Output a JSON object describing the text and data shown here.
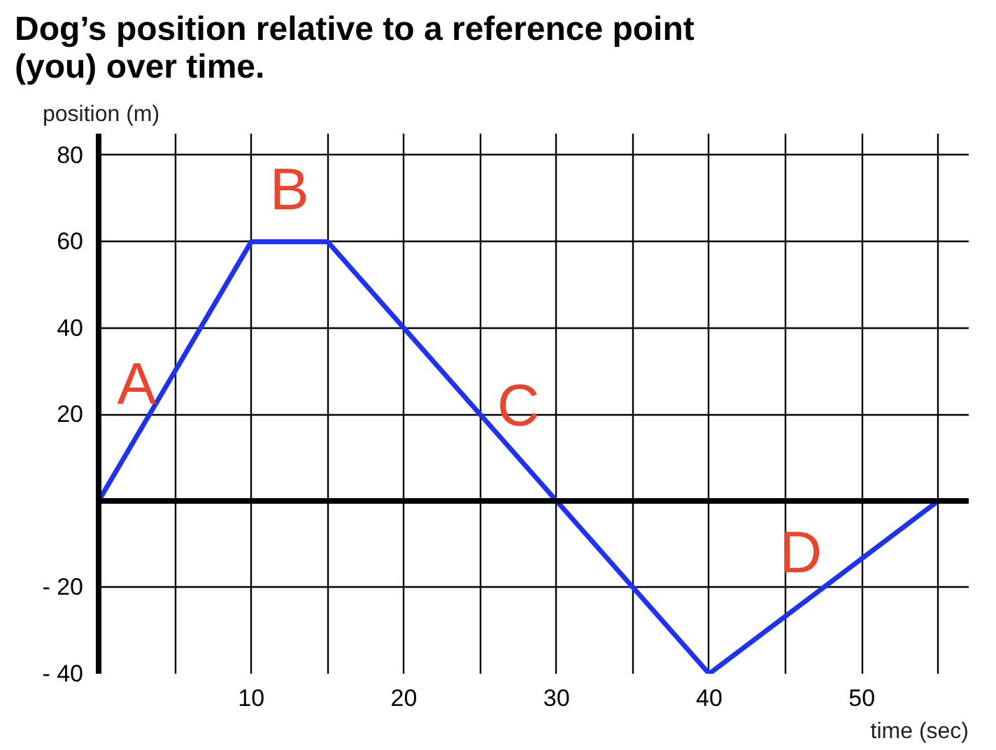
{
  "chart_data": {
    "type": "line",
    "title": "Dog’s position relative to a reference point\n(you) over time.",
    "ylabel": "position (m)",
    "xlabel": "time (sec)",
    "x": [
      0,
      10,
      15,
      30,
      40,
      55
    ],
    "series": [
      {
        "color": "#1f32f0",
        "values": [
          0,
          60,
          60,
          0,
          -40,
          0
        ]
      }
    ],
    "xlim": [
      0,
      57
    ],
    "ylim": [
      -40,
      85
    ],
    "xticks": [
      {
        "value": 5,
        "label": null
      },
      10,
      {
        "value": 15,
        "label": null
      },
      20,
      {
        "value": 25,
        "label": null
      },
      30,
      {
        "value": 35,
        "label": null
      },
      40,
      {
        "value": 45,
        "label": null
      },
      50,
      {
        "value": 55,
        "label": null
      }
    ],
    "yticks": [
      {
        "value": -40,
        "label": "- 40"
      },
      {
        "value": -20,
        "label": "- 20"
      },
      {
        "value": 0,
        "label": null
      },
      20,
      40,
      60,
      80
    ],
    "grid": true,
    "marker": "none",
    "line_style": "solid",
    "ref_lines": [
      {
        "axis": "y",
        "value": 0,
        "label": null,
        "color": "#000000"
      }
    ],
    "annotations": [
      {
        "text": "A",
        "x": 2.5,
        "y": 15
      },
      {
        "text": "B",
        "x": 12.5,
        "y": 60
      },
      {
        "text": "C",
        "x": 27.5,
        "y": 10
      },
      {
        "text": "D",
        "x": 46,
        "y": -24
      }
    ]
  }
}
